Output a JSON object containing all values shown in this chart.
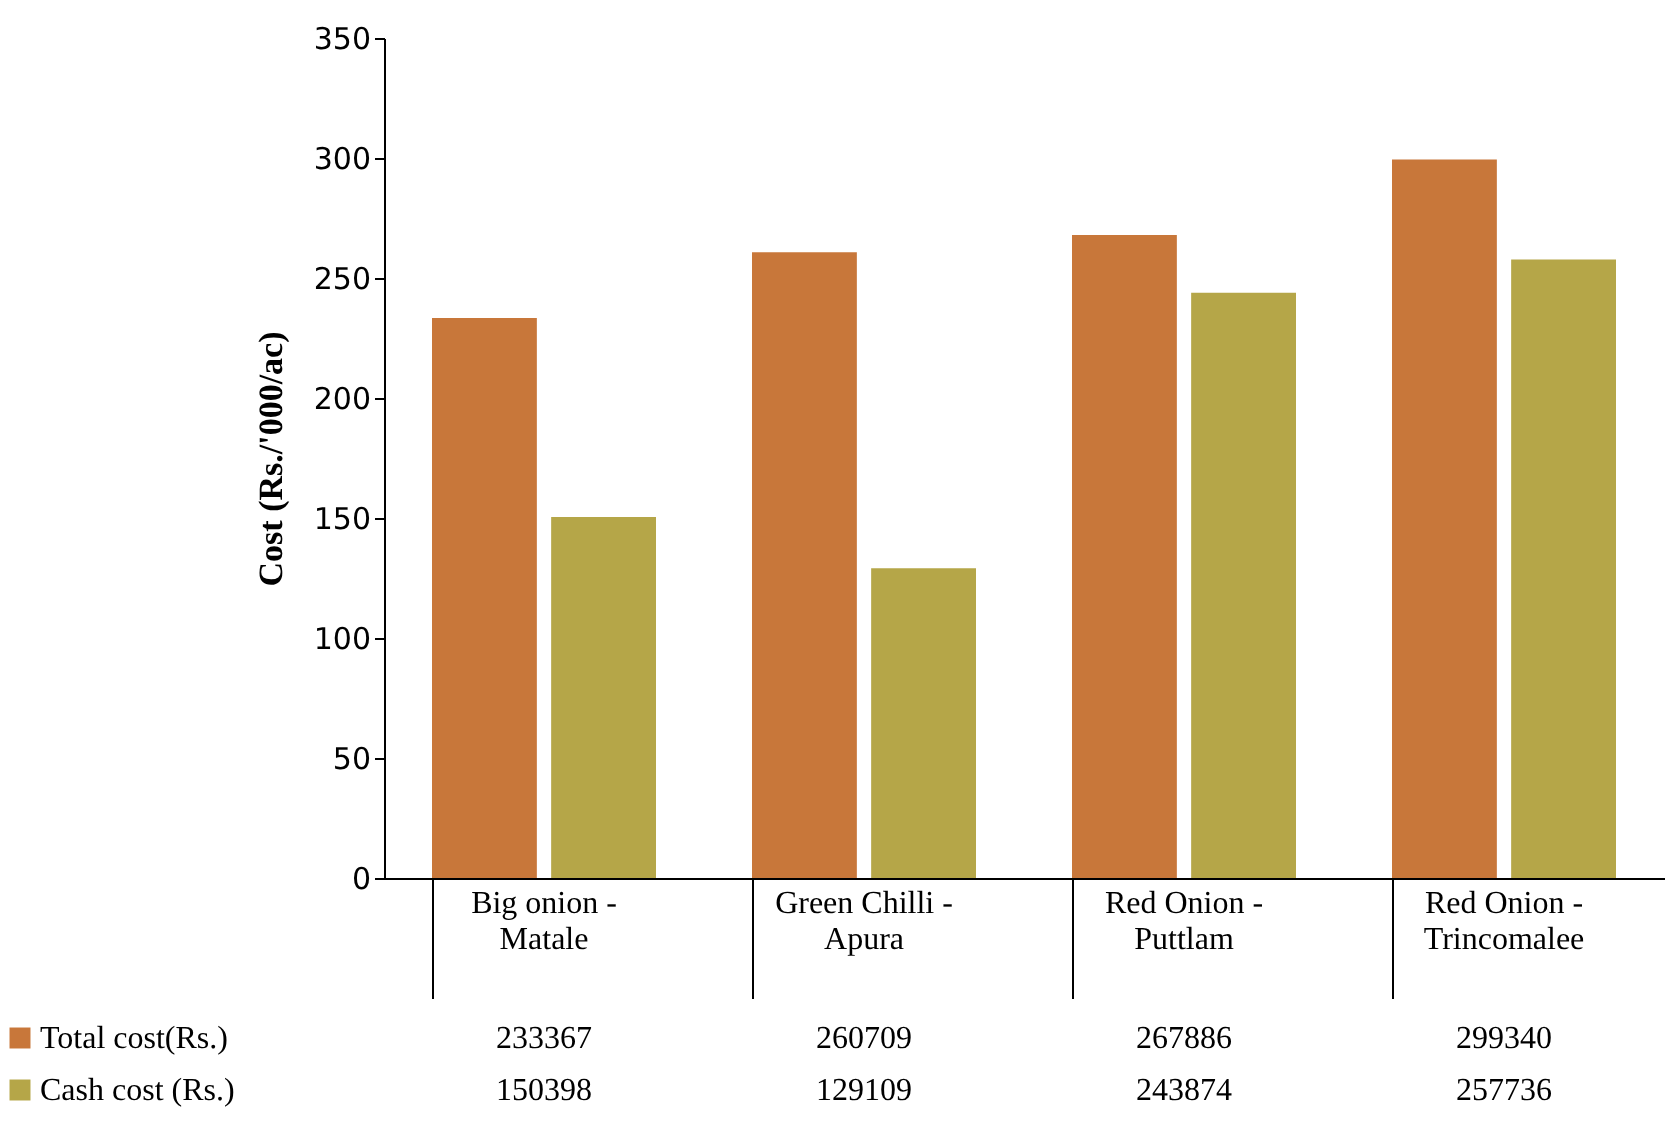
{
  "chart_data": {
    "type": "bar",
    "ylabel": "Cost (Rs./'000/ac)",
    "categories": [
      "Big onion - Matale",
      "Green Chilli - Apura",
      "Red Onion - Puttlam",
      "Red Onion - Trincomalee"
    ],
    "series": [
      {
        "name": "Total cost(Rs.)",
        "color": "#c8773a",
        "values": [
          233.367,
          260.709,
          267.886,
          299.34
        ]
      },
      {
        "name": "Cash cost (Rs.)",
        "color": "#b5a648",
        "values": [
          150.398,
          129.109,
          243.874,
          257.736
        ]
      }
    ],
    "annotations": [
      "233367",
      "260709",
      "267886",
      "299340",
      "150398",
      "129109",
      "243874",
      "257736"
    ],
    "ylim": [
      0,
      350
    ],
    "yticks": [
      0,
      50,
      100,
      150,
      200,
      250,
      300,
      350
    ],
    "grid": false,
    "legend": "bottom"
  }
}
